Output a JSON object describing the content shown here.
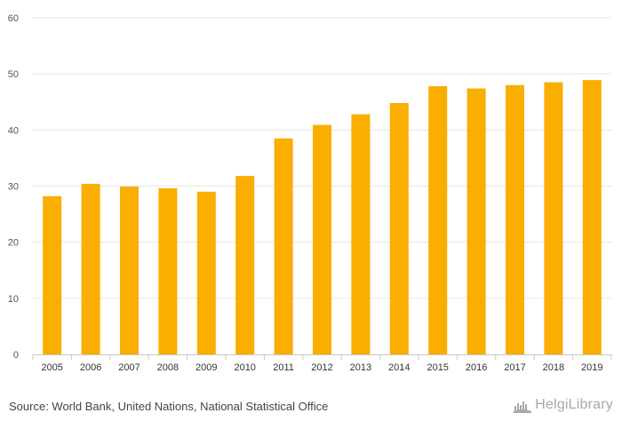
{
  "chart_data": {
    "type": "bar",
    "title": "",
    "xlabel": "",
    "ylabel": "",
    "categories": [
      "2005",
      "2006",
      "2007",
      "2008",
      "2009",
      "2010",
      "2011",
      "2012",
      "2013",
      "2014",
      "2015",
      "2016",
      "2017",
      "2018",
      "2019"
    ],
    "values": [
      28.2,
      30.4,
      29.9,
      29.6,
      29.0,
      31.8,
      38.5,
      40.9,
      42.8,
      44.8,
      47.8,
      47.4,
      48.0,
      48.5,
      48.9
    ],
    "ylim": [
      0,
      60
    ],
    "yticks": [
      "0",
      "10",
      "20",
      "30",
      "40",
      "50",
      "60"
    ],
    "grid": true,
    "bar_color": "#f9ae00"
  },
  "footer": {
    "source": "Source: World Bank, United Nations, National Statistical Office",
    "brand": "HelgiLibrary",
    "brand_icon": "chart-hand-logo-icon"
  }
}
